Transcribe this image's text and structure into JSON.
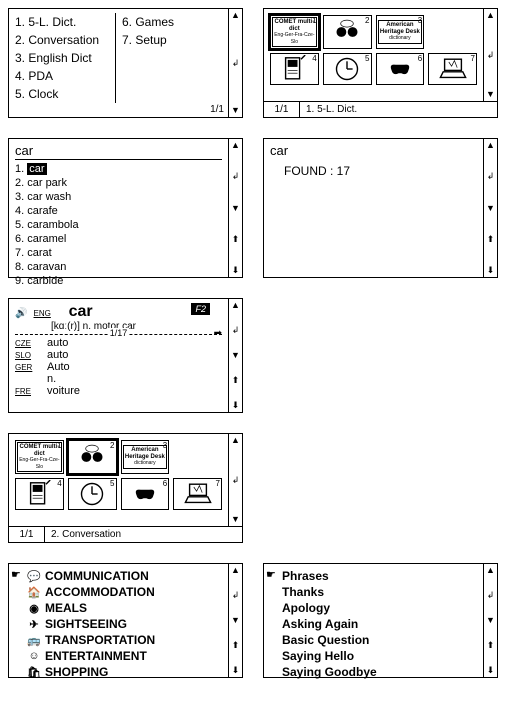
{
  "panel_menu": {
    "col1": [
      "1. 5-L. Dict.",
      "2. Conversation",
      "3. English Dict",
      "4. PDA",
      "5. Clock"
    ],
    "col2": [
      "6. Games",
      "7. Setup"
    ],
    "page": "1/1"
  },
  "panel_icons": {
    "cells": [
      {
        "num": "1",
        "label": "COMET multi-dict",
        "sub": "Eng-Ger-Fra-Cze-Slo",
        "boxed": true
      },
      {
        "num": "2",
        "label": "",
        "svg": "talk"
      },
      {
        "num": "3",
        "label": "American Heritage Desk",
        "sub": "dictionary",
        "boxed": true
      },
      {
        "num": "",
        "label": ""
      },
      {
        "num": "4",
        "label": "",
        "svg": "pda"
      },
      {
        "num": "5",
        "label": "",
        "svg": "clock"
      },
      {
        "num": "6",
        "label": "",
        "svg": "game"
      },
      {
        "num": "7",
        "label": "",
        "svg": "laptop"
      }
    ],
    "status_page": "1/1",
    "status_title": "1. 5-L. Dict."
  },
  "panel_wordlist": {
    "query": "car",
    "items": [
      "1. car",
      "2. car park",
      "3. car wash",
      "4. carafe",
      "5. carambola",
      "6. caramel",
      "7. carat",
      "8. caravan",
      "9. carbide"
    ],
    "selected_word": "car"
  },
  "panel_found": {
    "query": "car",
    "result": "FOUND : 17"
  },
  "panel_entry": {
    "lang_head": "ENG",
    "word": "car",
    "phon": "[kɑː(r)] n. motor car",
    "page": "1/17",
    "f2": "F2",
    "translations": [
      {
        "lang": "CZE",
        "text": "auto"
      },
      {
        "lang": "SLO",
        "text": "auto"
      },
      {
        "lang": "GER",
        "text": "Auto"
      },
      {
        "lang": "",
        "text": "n."
      },
      {
        "lang": "FRE",
        "text": "voiture"
      }
    ]
  },
  "panel_icons2": {
    "status_page": "1/1",
    "status_title": "2. Conversation"
  },
  "panel_categories": {
    "items": [
      {
        "icon": "💬",
        "label": "COMMUNICATION"
      },
      {
        "icon": "🏠",
        "label": "ACCOMMODATION"
      },
      {
        "icon": "◉",
        "label": "MEALS"
      },
      {
        "icon": "✈",
        "label": "SIGHTSEEING"
      },
      {
        "icon": "🚌",
        "label": "TRANSPORTATION"
      },
      {
        "icon": "☺",
        "label": "ENTERTAINMENT"
      },
      {
        "icon": "🛍",
        "label": "SHOPPING"
      }
    ]
  },
  "panel_phrases": {
    "header": "Phrases",
    "items": [
      "Thanks",
      "Apology",
      "Asking Again",
      "Basic Question",
      "Saying Hello",
      "Saying Goodbye"
    ]
  },
  "scroll_glyphs": {
    "up": "▲",
    "down": "▼",
    "dup": "⬆",
    "ddown": "⬇",
    "enter": "↲"
  }
}
